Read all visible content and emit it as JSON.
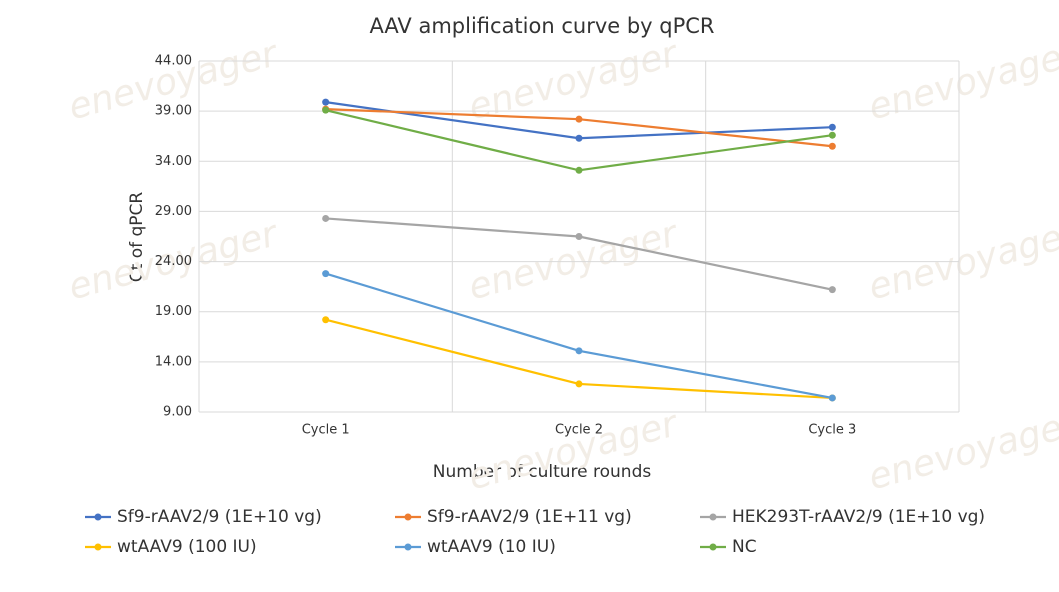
{
  "chart_data": {
    "type": "line",
    "title": "AAV amplification curve by qPCR",
    "x_label": "Number of culture rounds",
    "y_label": "Ct of qPCR",
    "watermark": "enevoyager",
    "categories": [
      "Cycle 1",
      "Cycle 2",
      "Cycle 3"
    ],
    "series": [
      {
        "name": "Sf9-rAAV2/9 (1E+10 vg)",
        "color": "#4472c4",
        "values": [
          39.9,
          36.3,
          37.4
        ]
      },
      {
        "name": "Sf9-rAAV2/9 (1E+11 vg)",
        "color": "#ed7d31",
        "values": [
          39.2,
          38.2,
          35.5
        ]
      },
      {
        "name": "HEK293T-rAAV2/9 (1E+10 vg)",
        "color": "#a5a5a5",
        "values": [
          28.3,
          26.5,
          21.2
        ]
      },
      {
        "name": "wtAAV9 (100 IU)",
        "color": "#ffc000",
        "values": [
          18.2,
          11.8,
          10.4
        ]
      },
      {
        "name": "wtAAV9 (10 IU)",
        "color": "#5b9bd5",
        "values": [
          22.8,
          15.1,
          10.4
        ]
      },
      {
        "name": "NC",
        "color": "#70ad47",
        "values": [
          39.1,
          33.1,
          36.6
        ]
      }
    ],
    "ylim": [
      9,
      44
    ],
    "yticks": [
      {
        "value": 9,
        "label": "9.00"
      },
      {
        "value": 14,
        "label": "14.00"
      },
      {
        "value": 19,
        "label": "19.00"
      },
      {
        "value": 24,
        "label": "24.00"
      },
      {
        "value": 29,
        "label": "29.00"
      },
      {
        "value": 34,
        "label": "34.00"
      },
      {
        "value": 39,
        "label": "39.00"
      },
      {
        "value": 44,
        "label": "44.00"
      }
    ],
    "grid": true,
    "legend": "bottom"
  }
}
